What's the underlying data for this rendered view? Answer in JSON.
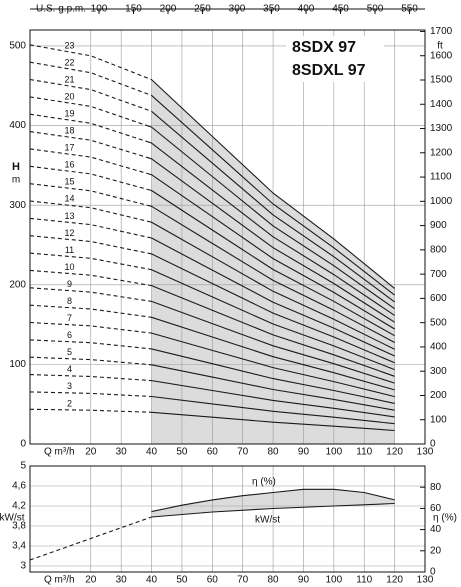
{
  "chart_data": [
    {
      "type": "line",
      "annotations": [
        "8SDX 97",
        "8SDXL 97"
      ],
      "x_label": "Q m³/h",
      "y_label": "H",
      "y_unit": "m",
      "y2_label": "ft",
      "top_axis_label": "U.S. g.p.m.",
      "x": [
        0,
        20,
        40,
        60,
        80,
        100,
        120
      ],
      "xlim": [
        0,
        130
      ],
      "xticks": [
        20,
        30,
        40,
        50,
        60,
        70,
        80,
        90,
        100,
        110,
        120,
        130
      ],
      "ylim": [
        0,
        520
      ],
      "yticks": [
        0,
        100,
        200,
        300,
        400,
        500
      ],
      "y2lim": [
        0,
        1706
      ],
      "y2ticks": [
        0,
        100,
        200,
        300,
        400,
        500,
        600,
        700,
        800,
        900,
        1000,
        1100,
        1200,
        1300,
        1400,
        1500,
        1600,
        1700
      ],
      "top_xlim": [
        0,
        572.4
      ],
      "top_xticks": [
        100,
        150,
        200,
        250,
        300,
        350,
        400,
        450,
        500,
        550
      ],
      "dashed_below": 40,
      "shade_from": 40,
      "grid": true,
      "series": [
        {
          "name": "2",
          "color": "#1a1a1a",
          "values": [
            43.6,
            42.4,
            39.8,
            33.6,
            27.4,
            22.4,
            17
          ]
        },
        {
          "name": "3",
          "color": "#1a1a1a",
          "values": [
            65.4,
            63.6,
            59.7,
            50.4,
            41.1,
            33.6,
            25.5
          ]
        },
        {
          "name": "4",
          "color": "#1a1a1a",
          "values": [
            87.2,
            84.8,
            79.6,
            67.2,
            54.8,
            44.8,
            34
          ]
        },
        {
          "name": "5",
          "color": "#1a1a1a",
          "values": [
            109,
            106,
            99.5,
            84,
            68.5,
            56,
            42.5
          ]
        },
        {
          "name": "6",
          "color": "#1a1a1a",
          "values": [
            130.8,
            127.2,
            119.4,
            100.8,
            82.2,
            67.2,
            51
          ]
        },
        {
          "name": "7",
          "color": "#1a1a1a",
          "values": [
            152.6,
            148.4,
            139.3,
            117.6,
            95.9,
            78.4,
            59.5
          ]
        },
        {
          "name": "8",
          "color": "#1a1a1a",
          "values": [
            174.4,
            169.6,
            159.2,
            134.4,
            109.6,
            89.6,
            68
          ]
        },
        {
          "name": "9",
          "color": "#1a1a1a",
          "values": [
            196.2,
            190.8,
            179.1,
            151.2,
            123.3,
            100.8,
            76.5
          ]
        },
        {
          "name": "10",
          "color": "#1a1a1a",
          "values": [
            218,
            212,
            199,
            168,
            137,
            112,
            85
          ]
        },
        {
          "name": "11",
          "color": "#1a1a1a",
          "values": [
            239.8,
            233.2,
            218.9,
            184.8,
            150.7,
            123.2,
            93.5
          ]
        },
        {
          "name": "12",
          "color": "#1a1a1a",
          "values": [
            261.6,
            254.4,
            238.8,
            201.6,
            164.4,
            134.4,
            102
          ]
        },
        {
          "name": "13",
          "color": "#1a1a1a",
          "values": [
            283.4,
            275.6,
            258.7,
            218.4,
            178.1,
            145.6,
            110.5
          ]
        },
        {
          "name": "14",
          "color": "#1a1a1a",
          "values": [
            305.2,
            296.8,
            278.6,
            235.2,
            191.8,
            156.8,
            119
          ]
        },
        {
          "name": "15",
          "color": "#1a1a1a",
          "values": [
            327,
            318,
            298.5,
            252,
            205.5,
            168,
            127.5
          ]
        },
        {
          "name": "16",
          "color": "#1a1a1a",
          "values": [
            348.8,
            339.2,
            318.4,
            268.8,
            219.2,
            179.2,
            136
          ]
        },
        {
          "name": "17",
          "color": "#1a1a1a",
          "values": [
            370.6,
            360.4,
            338.3,
            285.6,
            232.9,
            190.4,
            144.5
          ]
        },
        {
          "name": "18",
          "color": "#1a1a1a",
          "values": [
            392.4,
            381.6,
            358.2,
            302.4,
            246.6,
            201.6,
            153
          ]
        },
        {
          "name": "19",
          "color": "#1a1a1a",
          "values": [
            414.2,
            402.8,
            378.1,
            319.2,
            260.3,
            212.8,
            161.5
          ]
        },
        {
          "name": "20",
          "color": "#1a1a1a",
          "values": [
            436,
            424,
            398,
            336,
            274,
            224,
            170
          ]
        },
        {
          "name": "21",
          "color": "#1a1a1a",
          "values": [
            457.8,
            445.2,
            417.9,
            352.8,
            287.7,
            235.2,
            178.5
          ]
        },
        {
          "name": "22",
          "color": "#1a1a1a",
          "values": [
            479.6,
            466.4,
            437.8,
            369.6,
            301.4,
            246.4,
            187
          ]
        },
        {
          "name": "23",
          "color": "#1a1a1a",
          "values": [
            501.4,
            487.6,
            457.7,
            386.4,
            315.1,
            257.6,
            195.5
          ]
        }
      ]
    },
    {
      "type": "line",
      "x_label": "Q m³/h",
      "y_label": "kW/st",
      "y2_label": "η (%)",
      "xlim": [
        0,
        130
      ],
      "xticks": [
        20,
        30,
        40,
        50,
        60,
        70,
        80,
        90,
        100,
        110,
        120,
        130
      ],
      "ylim": [
        2.88,
        5.0
      ],
      "yticks": [
        3,
        {
          "value": 3.4,
          "label": "3,4"
        },
        {
          "value": 3.8,
          "label": "3,8"
        },
        {
          "value": 4.2,
          "label": "4,2"
        },
        {
          "value": 4.6,
          "label": "4,6"
        },
        5
      ],
      "y2lim": [
        0,
        100
      ],
      "y2ticks": [
        0,
        20,
        40,
        60,
        80
      ],
      "dashed_below": 40,
      "shade_from": 40,
      "grid": true,
      "series": [
        {
          "name": "kW/st",
          "color": "#1a1a1a",
          "x": [
            0,
            20,
            40,
            60,
            80,
            100,
            120
          ],
          "values": [
            3.12,
            3.55,
            3.98,
            4.08,
            4.15,
            4.2,
            4.25
          ]
        },
        {
          "name": "η (%)",
          "color": "#1a1a1a",
          "axis": "y2",
          "x": [
            40,
            50,
            60,
            70,
            80,
            90,
            100,
            110,
            120
          ],
          "values": [
            57,
            63,
            68,
            72,
            75,
            78,
            78,
            75,
            68
          ]
        }
      ]
    }
  ]
}
